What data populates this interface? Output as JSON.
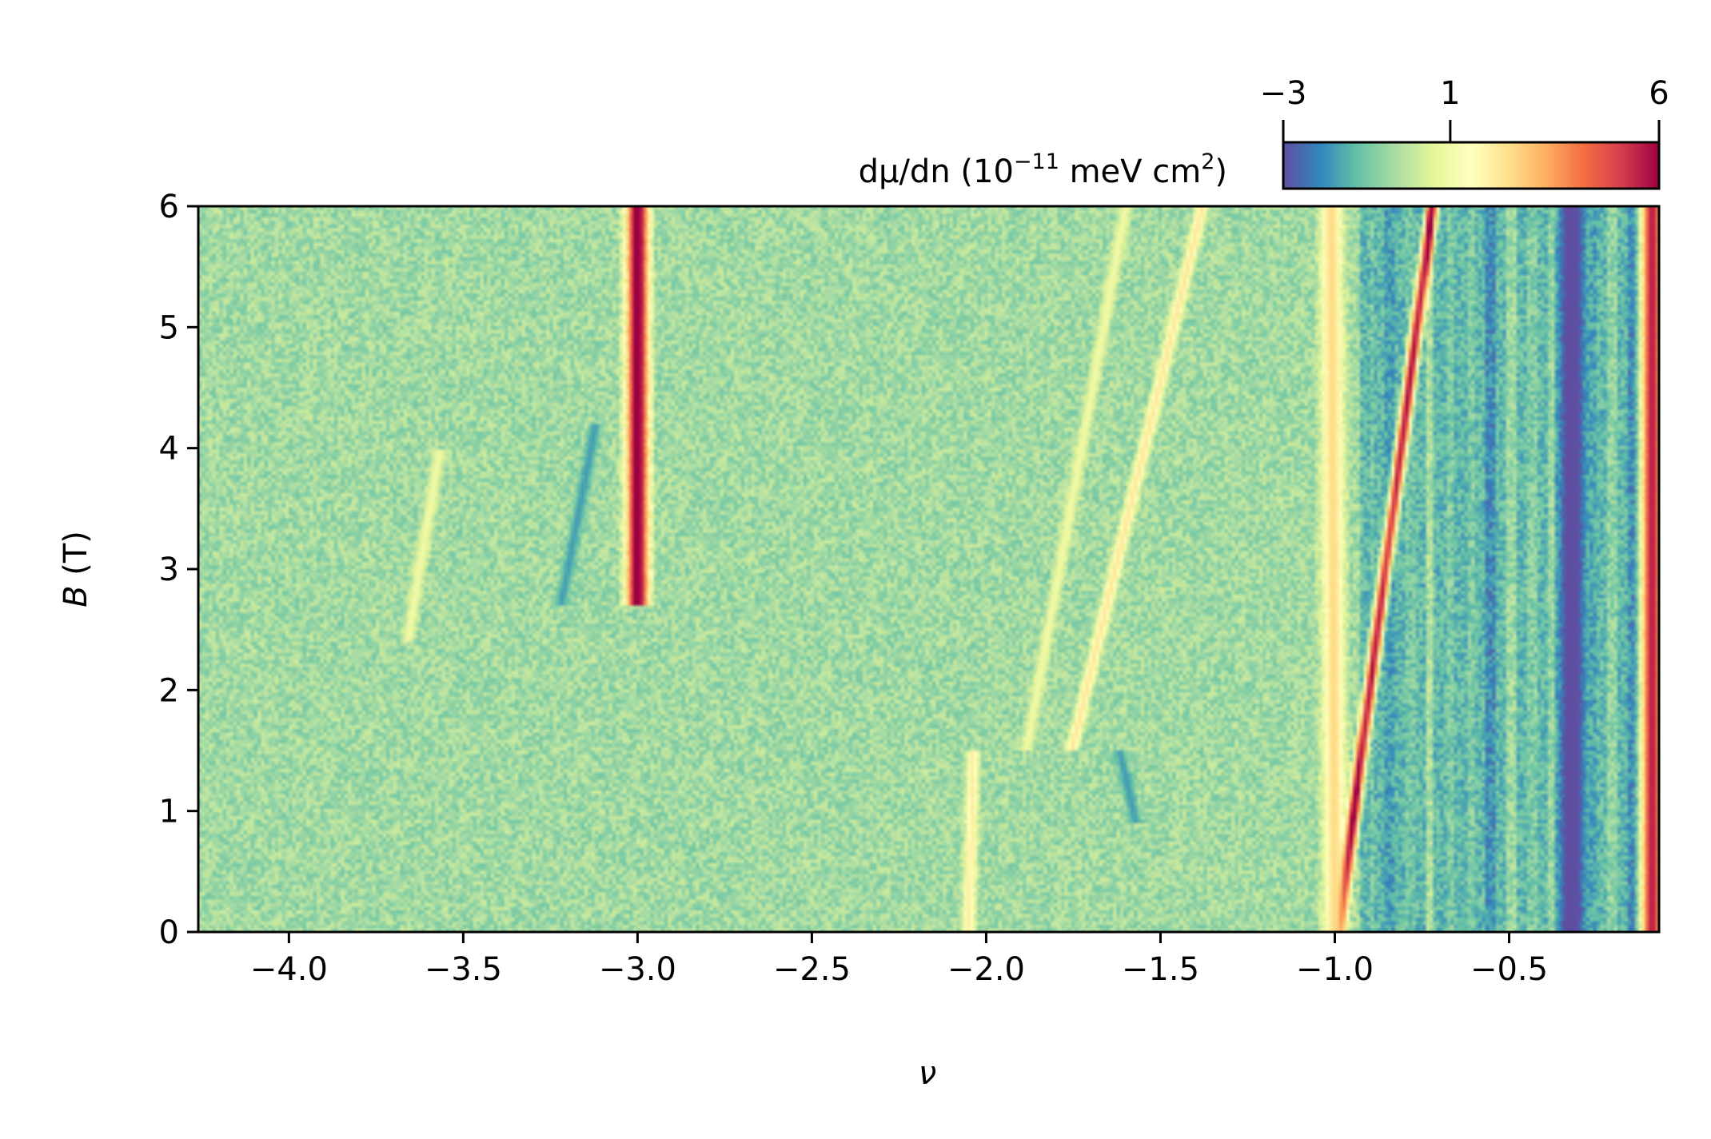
{
  "chart_data": {
    "type": "heatmap",
    "xlabel": "ν",
    "ylabel_symbol": "B",
    "ylabel_unit": "(T)",
    "xlim": [
      -4.26,
      -0.07
    ],
    "ylim": [
      0,
      6
    ],
    "x_ticks": [
      {
        "value": -4.0,
        "label": "−4.0"
      },
      {
        "value": -3.5,
        "label": "−3.5"
      },
      {
        "value": -3.0,
        "label": "−3.0"
      },
      {
        "value": -2.5,
        "label": "−2.5"
      },
      {
        "value": -2.0,
        "label": "−2.0"
      },
      {
        "value": -1.5,
        "label": "−1.5"
      },
      {
        "value": -1.0,
        "label": "−1.0"
      },
      {
        "value": -0.5,
        "label": "−0.5"
      }
    ],
    "y_ticks": [
      {
        "value": 0,
        "label": "0"
      },
      {
        "value": 1,
        "label": "1"
      },
      {
        "value": 2,
        "label": "2"
      },
      {
        "value": 3,
        "label": "3"
      },
      {
        "value": 4,
        "label": "4"
      },
      {
        "value": 5,
        "label": "5"
      },
      {
        "value": 6,
        "label": "6"
      }
    ],
    "colorbar": {
      "label_prefix": "dμ/dn (10",
      "label_exp": "−11",
      "label_mid": " meV cm",
      "label_exp2": "2",
      "label_suffix": ")",
      "range": [
        -3,
        6
      ],
      "ticks": [
        {
          "value": -3,
          "label": "−3"
        },
        {
          "value": 1,
          "label": "1"
        },
        {
          "value": 6,
          "label": "6"
        }
      ],
      "colormap": "Spectral_r",
      "colors": [
        "#5e4fa2",
        "#3288bd",
        "#66c2a5",
        "#abdda4",
        "#e6f598",
        "#ffffbf",
        "#fee08b",
        "#fdae61",
        "#f46d43",
        "#d53e4f",
        "#9e0142"
      ]
    },
    "background_level": -0.4,
    "features": [
      {
        "kind": "vertical-band",
        "x_at_B0": -3.0,
        "x_at_B6": -3.0,
        "y_range": [
          2.7,
          6
        ],
        "value": 6.5
      },
      {
        "kind": "diagonal-line",
        "x_at_B0": -0.99,
        "x_at_B6": -0.72,
        "y_range": [
          0,
          6
        ],
        "value": 6.5
      },
      {
        "kind": "diagonal-line",
        "x_at_B0": -1.88,
        "x_at_B6": -1.38,
        "y_range": [
          1.5,
          6
        ],
        "value": 2.2
      },
      {
        "kind": "diagonal-line",
        "x_at_B0": -1.98,
        "x_at_B6": -1.6,
        "y_range": [
          1.5,
          6
        ],
        "value": 1.0
      },
      {
        "kind": "diagonal-line",
        "x_at_B0": -3.8,
        "x_at_B6": -3.45,
        "y_range": [
          2.4,
          4
        ],
        "value": 1.0
      },
      {
        "kind": "diagonal-line",
        "x_at_B0": -2.05,
        "x_at_B6": -2.0,
        "y_range": [
          0,
          1.5
        ],
        "value": 2.0
      },
      {
        "kind": "vertical-band",
        "x_at_B0": -1.0,
        "x_at_B6": -1.01,
        "y_range": [
          0,
          6
        ],
        "value": 2.5
      },
      {
        "kind": "diagonal-line",
        "x_at_B0": -3.4,
        "x_at_B6": -3.0,
        "y_range": [
          2.7,
          4.2
        ],
        "value": -1.8
      },
      {
        "kind": "diagonal-line",
        "x_at_B0": -1.5,
        "x_at_B6": -1.97,
        "y_range": [
          0.9,
          1.5
        ],
        "value": -1.8
      },
      {
        "kind": "vertical-band",
        "x_at_B0": -0.32,
        "x_at_B6": -0.32,
        "y_range": [
          0,
          6
        ],
        "value": -3.0
      },
      {
        "kind": "vertical-band",
        "x_at_B0": -0.09,
        "x_at_B6": -0.09,
        "y_range": [
          0,
          6
        ],
        "value": 6.5
      },
      {
        "kind": "region",
        "x_range": [
          -0.93,
          -0.07
        ],
        "y_range": [
          0,
          6
        ],
        "value": -2.0
      }
    ]
  }
}
